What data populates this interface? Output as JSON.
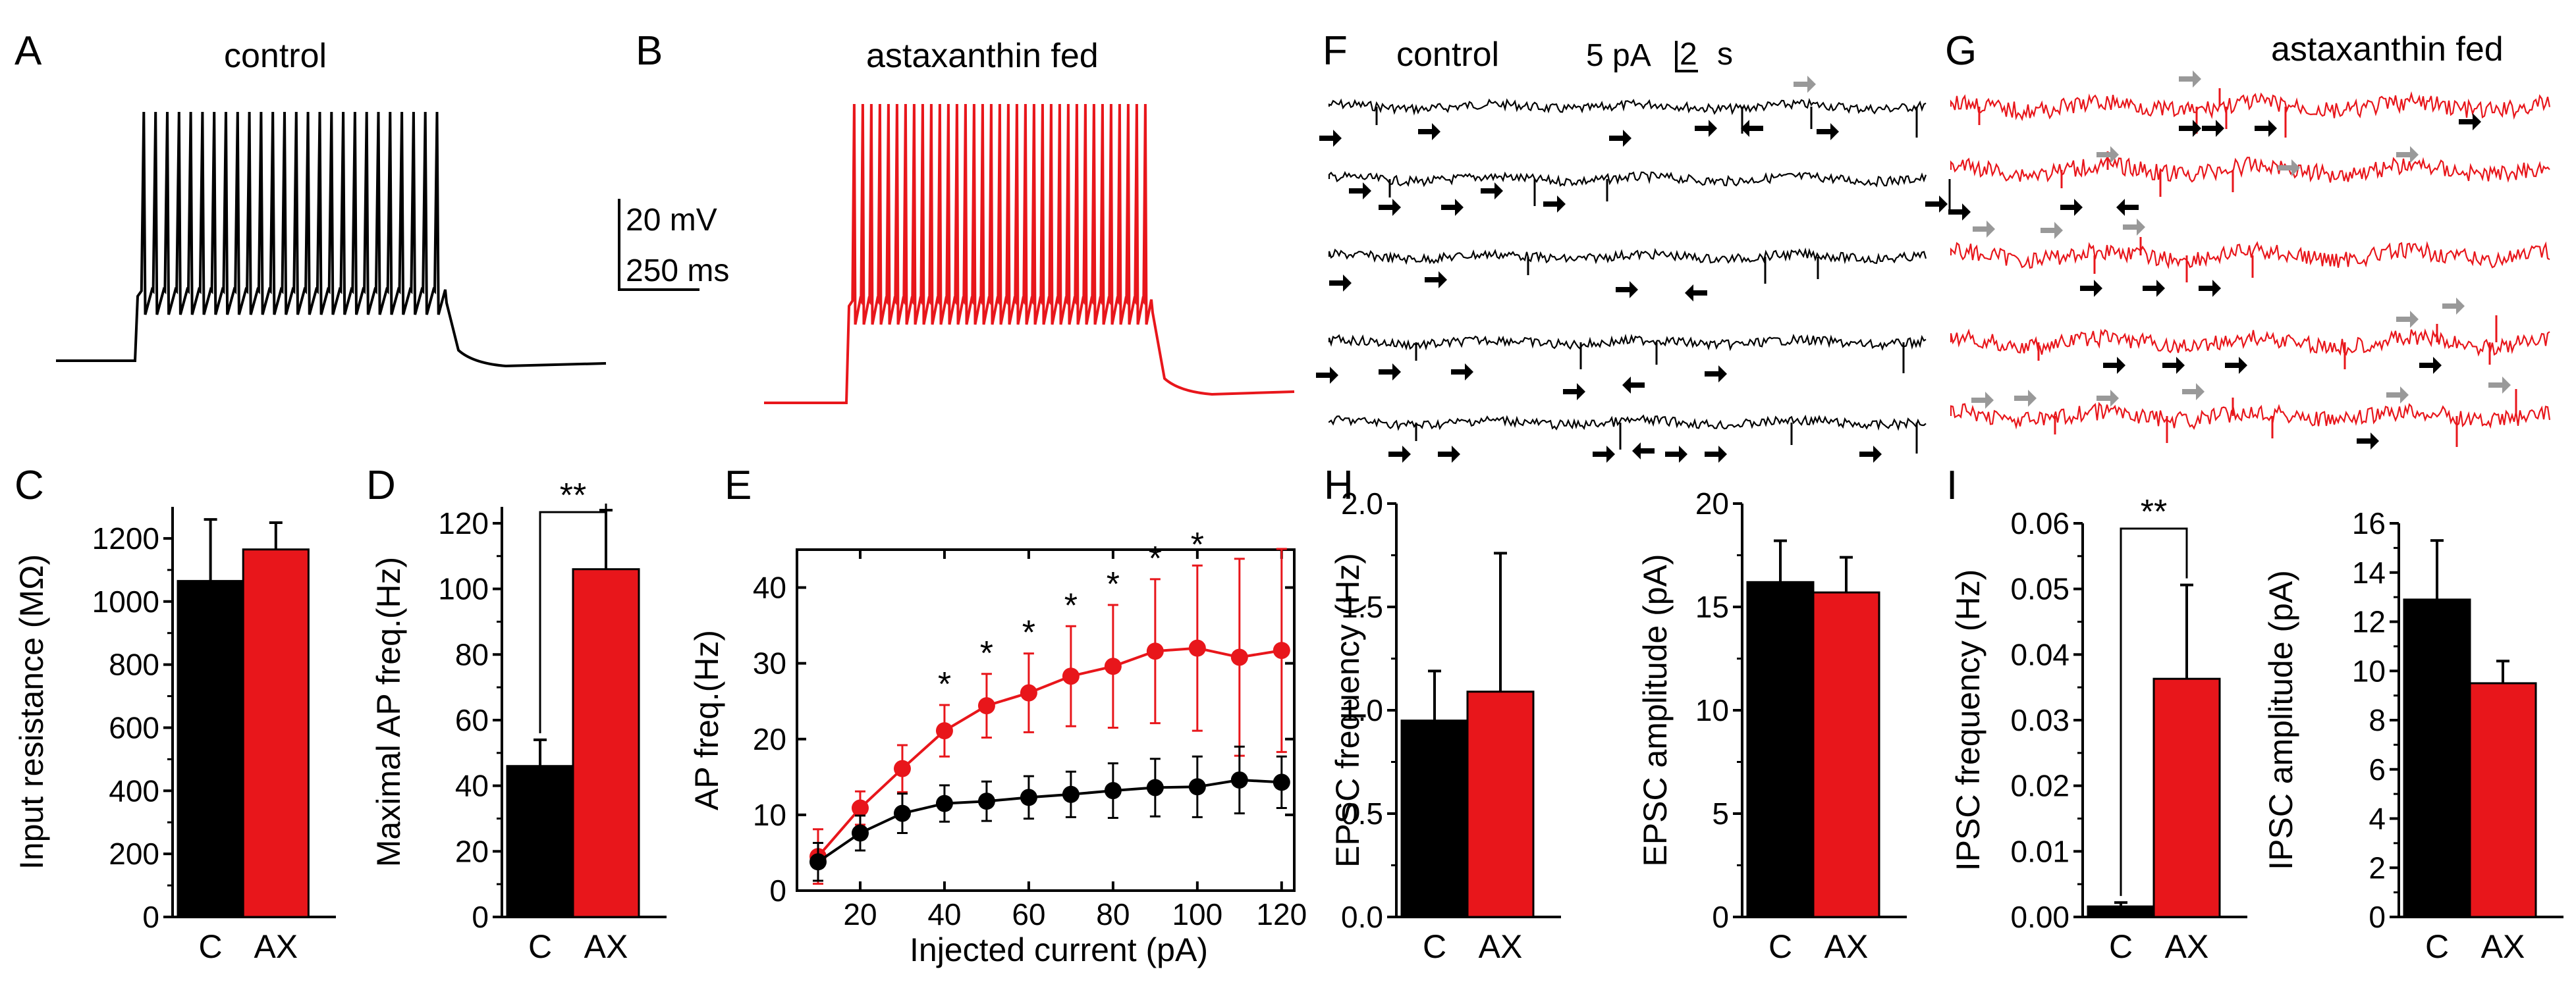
{
  "panels": {
    "A": {
      "label": "A",
      "title": "control"
    },
    "B": {
      "label": "B",
      "title": "astaxanthin fed"
    },
    "F": {
      "label": "F",
      "title": "control"
    },
    "G": {
      "label": "G",
      "title": "astaxanthin fed"
    }
  },
  "scalebars": {
    "voltage": "20 mV",
    "time": "250 ms",
    "current": "5 pA",
    "time2_value": "2",
    "time2_unit": "s"
  },
  "colors": {
    "control": "#000000",
    "ax": "#e8161b",
    "open_arrow": "#999999"
  },
  "chart_data": [
    {
      "id": "C",
      "label": "C",
      "type": "bar",
      "categories": [
        "C",
        "AX"
      ],
      "values": [
        1065,
        1165
      ],
      "errors": [
        195,
        85
      ],
      "ylabel": "Input resistance (MΩ)",
      "ylim": [
        0,
        1300
      ],
      "yticks": [
        "0",
        "200",
        "400",
        "600",
        "800",
        "1000",
        "1200"
      ]
    },
    {
      "id": "D",
      "label": "D",
      "type": "bar",
      "categories": [
        "C",
        "AX"
      ],
      "values": [
        46,
        106
      ],
      "errors": [
        8,
        18
      ],
      "ylabel": "Maximal AP freq.(Hz)",
      "ylim": [
        0,
        125
      ],
      "yticks": [
        "0",
        "20",
        "40",
        "60",
        "80",
        "100",
        "120"
      ],
      "significance": "**"
    },
    {
      "id": "E",
      "label": "E",
      "type": "line",
      "x": [
        10,
        20,
        30,
        40,
        50,
        60,
        70,
        80,
        90,
        100,
        110,
        120
      ],
      "series": [
        {
          "name": "control",
          "values": [
            3.8,
            7.6,
            10.2,
            11.5,
            11.8,
            12.3,
            12.7,
            13.2,
            13.6,
            13.7,
            14.6,
            14.3
          ],
          "errors": [
            2.5,
            2.3,
            2.6,
            2.4,
            2.6,
            2.8,
            3.0,
            3.6,
            3.8,
            4.0,
            4.4,
            3.4
          ]
        },
        {
          "name": "astaxanthin fed",
          "values": [
            4.5,
            10.9,
            16.1,
            21.1,
            24.4,
            26.1,
            28.3,
            29.6,
            31.6,
            32.0,
            30.8,
            31.7
          ],
          "errors": [
            3.6,
            2.2,
            3.1,
            3.4,
            4.2,
            5.2,
            6.6,
            8.1,
            9.5,
            10.9,
            13.0,
            13.4
          ]
        }
      ],
      "significant_points": [
        "*",
        "*",
        "*",
        "*",
        "*",
        "*",
        "*"
      ],
      "significant_x": [
        40,
        50,
        60,
        70,
        80,
        90,
        100
      ],
      "xlabel": "Injected current (pA)",
      "ylabel": "AP freq.(Hz)",
      "xlim": [
        5,
        123
      ],
      "ylim": [
        0,
        45
      ],
      "xticks": [
        "20",
        "40",
        "60",
        "80",
        "100",
        "120"
      ],
      "yticks": [
        "0",
        "10",
        "20",
        "30",
        "40"
      ]
    },
    {
      "id": "H1",
      "label": "H",
      "type": "bar",
      "categories": [
        "C",
        "AX"
      ],
      "values": [
        0.95,
        1.09
      ],
      "errors": [
        0.24,
        0.67
      ],
      "ylabel": "EPSC frequency (Hz)",
      "ylim": [
        0,
        2.0
      ],
      "yticks": [
        "0.0",
        "0.5",
        "1.0",
        "1.5",
        "2.0"
      ]
    },
    {
      "id": "H2",
      "label": "",
      "type": "bar",
      "categories": [
        "C",
        "AX"
      ],
      "values": [
        16.2,
        15.7
      ],
      "errors": [
        2.0,
        1.7
      ],
      "ylabel": "EPSC amplitude (pA)",
      "ylim": [
        0,
        20
      ],
      "yticks": [
        "0",
        "5",
        "10",
        "15",
        "20"
      ]
    },
    {
      "id": "I1",
      "label": "I",
      "type": "bar",
      "categories": [
        "C",
        "AX"
      ],
      "values": [
        0.0016,
        0.0363
      ],
      "errors": [
        0.0006,
        0.0143
      ],
      "ylabel": "IPSC frequency (Hz)",
      "ylim": [
        0,
        0.06
      ],
      "yticks": [
        "0.00",
        "0.01",
        "0.02",
        "0.03",
        "0.04",
        "0.05",
        "0.06"
      ],
      "significance": "**"
    },
    {
      "id": "I2",
      "label": "",
      "type": "bar",
      "categories": [
        "C",
        "AX"
      ],
      "values": [
        12.9,
        9.5
      ],
      "errors": [
        2.4,
        0.9
      ],
      "ylabel": "IPSC amplitude (pA)",
      "ylim": [
        0,
        16
      ],
      "yticks": [
        "0",
        "2",
        "4",
        "6",
        "8",
        "10",
        "12",
        "14",
        "16"
      ]
    }
  ]
}
